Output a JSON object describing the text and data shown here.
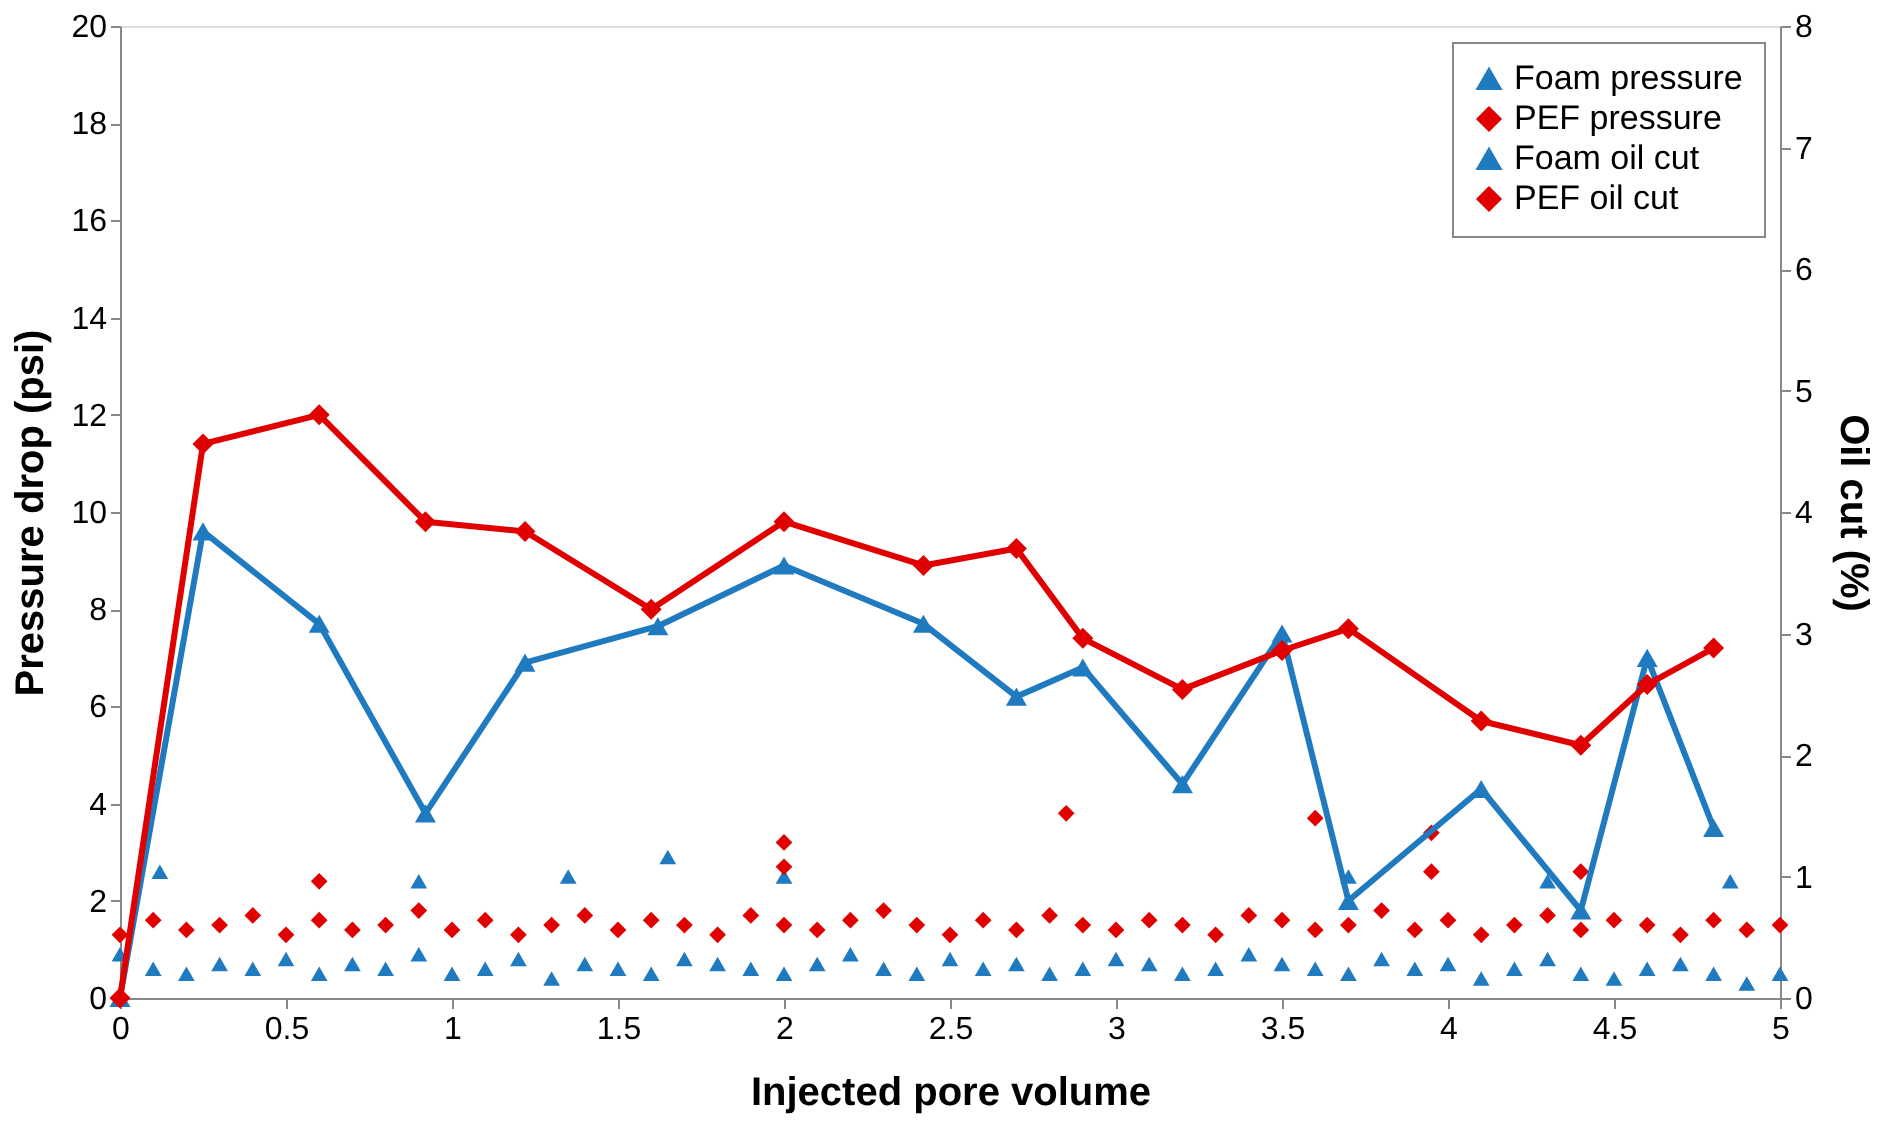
{
  "chart_data": {
    "type": "scatter",
    "xlabel": "Injected pore volume",
    "ylabel": "Pressure drop (psi)",
    "y2label": "Oil cut (%)",
    "xlim": [
      0,
      5
    ],
    "xticks": [
      0,
      0.5,
      1,
      1.5,
      2,
      2.5,
      3,
      3.5,
      4,
      4.5,
      5
    ],
    "ylim": [
      0,
      20
    ],
    "yticks": [
      0,
      2,
      4,
      6,
      8,
      10,
      12,
      14,
      16,
      18,
      20
    ],
    "y2lim": [
      0,
      8
    ],
    "y2ticks": [
      0,
      1,
      2,
      3,
      4,
      5,
      6,
      7,
      8
    ],
    "grid": false,
    "legend": "top right",
    "series": [
      {
        "name": "Foam pressure",
        "marker": "triangle",
        "color": "#1f7ac0",
        "x": [
          0,
          0.1,
          0.2,
          0.3,
          0.4,
          0.5,
          0.6,
          0.7,
          0.8,
          0.9,
          1,
          1.1,
          1.2,
          1.3,
          1.4,
          1.5,
          1.6,
          1.7,
          1.8,
          1.9,
          2,
          2.1,
          2.2,
          2.3,
          2.4,
          2.5,
          2.6,
          2.7,
          2.8,
          2.9,
          3,
          3.1,
          3.2,
          3.3,
          3.4,
          3.5,
          3.6,
          3.7,
          3.8,
          3.9,
          4,
          4.1,
          4.2,
          4.3,
          4.4,
          4.5,
          4.6,
          4.7,
          4.8,
          4.9,
          5,
          0.12,
          0.9,
          1.35,
          1.65,
          2.0,
          3.7,
          4.3,
          4.85
        ],
        "values": [
          0.9,
          0.6,
          0.5,
          0.7,
          0.6,
          0.8,
          0.5,
          0.7,
          0.6,
          0.9,
          0.5,
          0.6,
          0.8,
          0.4,
          0.7,
          0.6,
          0.5,
          0.8,
          0.7,
          0.6,
          0.5,
          0.7,
          0.9,
          0.6,
          0.5,
          0.8,
          0.6,
          0.7,
          0.5,
          0.6,
          0.8,
          0.7,
          0.5,
          0.6,
          0.9,
          0.7,
          0.6,
          0.5,
          0.8,
          0.6,
          0.7,
          0.4,
          0.6,
          0.8,
          0.5,
          0.4,
          0.6,
          0.7,
          0.5,
          0.3,
          0.5,
          2.6,
          2.4,
          2.5,
          2.9,
          2.5,
          2.5,
          2.4,
          2.4
        ]
      },
      {
        "name": "PEF pressure",
        "marker": "diamond",
        "color": "#e00000",
        "x": [
          0,
          0.1,
          0.2,
          0.3,
          0.4,
          0.5,
          0.6,
          0.7,
          0.8,
          0.9,
          1,
          1.1,
          1.2,
          1.3,
          1.4,
          1.5,
          1.6,
          1.7,
          1.8,
          1.9,
          2,
          2.1,
          2.2,
          2.3,
          2.4,
          2.5,
          2.6,
          2.7,
          2.8,
          2.9,
          3,
          3.1,
          3.2,
          3.3,
          3.4,
          3.5,
          3.6,
          3.7,
          3.8,
          3.9,
          4,
          4.1,
          4.2,
          4.3,
          4.4,
          4.5,
          4.6,
          4.7,
          4.8,
          4.9,
          5,
          0.6,
          2.0,
          2.0,
          2.85,
          3.6,
          3.95,
          3.95,
          4.4
        ],
        "values": [
          1.3,
          1.6,
          1.4,
          1.5,
          1.7,
          1.3,
          1.6,
          1.4,
          1.5,
          1.8,
          1.4,
          1.6,
          1.3,
          1.5,
          1.7,
          1.4,
          1.6,
          1.5,
          1.3,
          1.7,
          1.5,
          1.4,
          1.6,
          1.8,
          1.5,
          1.3,
          1.6,
          1.4,
          1.7,
          1.5,
          1.4,
          1.6,
          1.5,
          1.3,
          1.7,
          1.6,
          1.4,
          1.5,
          1.8,
          1.4,
          1.6,
          1.3,
          1.5,
          1.7,
          1.4,
          1.6,
          1.5,
          1.3,
          1.6,
          1.4,
          1.5,
          2.4,
          3.2,
          2.7,
          3.8,
          3.7,
          3.4,
          2.6,
          2.6
        ]
      },
      {
        "name": "Foam oil cut",
        "type": "line",
        "axis": "y2",
        "marker": "triangle",
        "line_style": "solid",
        "color": "#1f7ac0",
        "x": [
          0,
          0.25,
          0.6,
          0.92,
          1.22,
          1.62,
          2.0,
          2.42,
          2.7,
          2.9,
          3.2,
          3.5,
          3.7,
          4.1,
          4.4,
          4.6,
          4.8
        ],
        "values": [
          0,
          3.84,
          3.08,
          1.52,
          2.76,
          3.06,
          3.56,
          3.08,
          2.48,
          2.72,
          1.76,
          3.0,
          0.8,
          1.72,
          0.72,
          2.8,
          1.4
        ]
      },
      {
        "name": "PEF oil cut",
        "type": "line",
        "axis": "y2",
        "marker": "diamond",
        "line_style": "solid",
        "color": "#e00000",
        "x": [
          0,
          0.25,
          0.6,
          0.92,
          1.22,
          1.6,
          2.0,
          2.42,
          2.7,
          2.9,
          3.2,
          3.5,
          3.7,
          4.1,
          4.4,
          4.6,
          4.8
        ],
        "values": [
          0,
          4.56,
          4.8,
          3.92,
          3.84,
          3.2,
          3.92,
          3.56,
          3.7,
          2.96,
          2.54,
          2.86,
          3.04,
          2.28,
          2.08,
          2.58,
          2.88
        ]
      }
    ]
  }
}
